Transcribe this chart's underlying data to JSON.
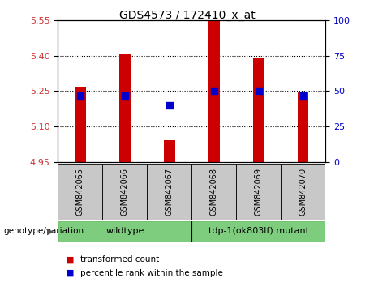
{
  "title": "GDS4573 / 172410_x_at",
  "samples": [
    "GSM842065",
    "GSM842066",
    "GSM842067",
    "GSM842068",
    "GSM842069",
    "GSM842070"
  ],
  "transformed_counts": [
    5.27,
    5.405,
    5.043,
    5.545,
    5.39,
    5.245
  ],
  "percentile_ranks": [
    47,
    47,
    40,
    50,
    50,
    47
  ],
  "y_min": 4.95,
  "y_max": 5.55,
  "y_ticks_left": [
    4.95,
    5.1,
    5.25,
    5.4,
    5.55
  ],
  "y_ticks_right": [
    0,
    25,
    50,
    75,
    100
  ],
  "groups": [
    {
      "label": "wildtype",
      "indices": [
        0,
        1,
        2
      ],
      "color": "#7ECD7E"
    },
    {
      "label": "tdp-1(ok803lf) mutant",
      "indices": [
        3,
        4,
        5
      ],
      "color": "#7ECD7E"
    }
  ],
  "bar_color": "#cc0000",
  "dot_color": "#0000cc",
  "bar_width": 0.25,
  "dot_size": 35,
  "background_label": "#c8c8c8",
  "genotype_label": "genotype/variation",
  "legend_items": [
    "transformed count",
    "percentile rank within the sample"
  ],
  "left_tick_color": "#cc3333",
  "right_tick_color": "#0000cc"
}
